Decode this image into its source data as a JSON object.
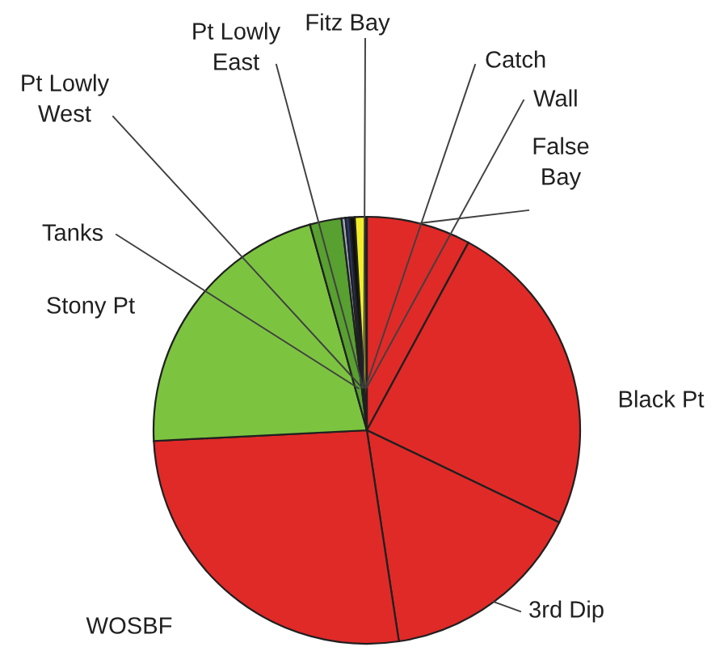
{
  "chart_data": {
    "type": "pie",
    "categories": [
      "False\nBay",
      "Black Pt",
      "3rd Dip",
      "WOSBF",
      "Stony Pt",
      "Tanks",
      "Pt Lowly\nWest",
      "Pt Lowly\nEast",
      "Fitz Bay",
      "Catch",
      "Wall"
    ],
    "values": [
      7.9,
      24.2,
      15.5,
      26.6,
      21.5,
      2.4,
      0.3,
      0.3,
      0.4,
      0.8,
      0.1
    ],
    "colors": [
      "#e02a28",
      "#e02a28",
      "#e02a28",
      "#e02a28",
      "#7cc440",
      "#58a030",
      "#9aa8c0",
      "#2a3a70",
      "#101010",
      "#f2ee2a",
      "#c8c8c8"
    ]
  }
}
